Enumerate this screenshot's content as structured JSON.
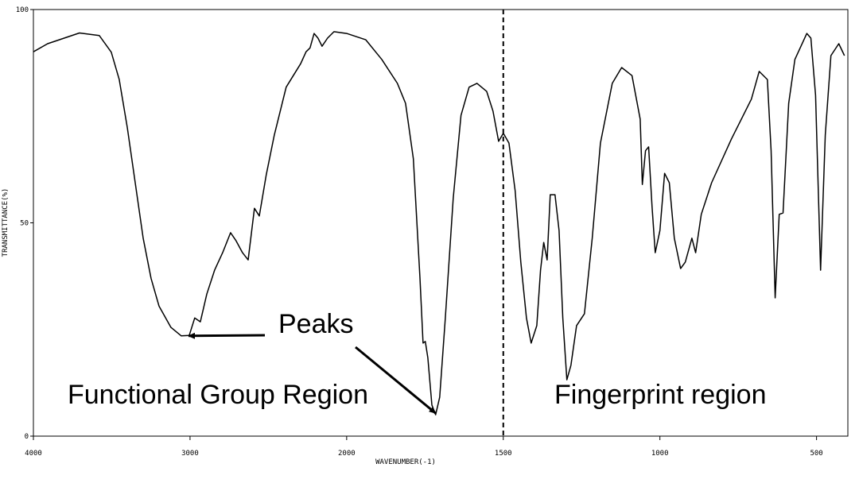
{
  "chart_data": {
    "type": "line",
    "xlabel": "WAVENUMBER(-1)",
    "ylabel": "TRANSMITTANCE(%)",
    "xlim": [
      4000,
      400
    ],
    "x_scale_break": 2000,
    "ylim": [
      0,
      100
    ],
    "xticks": [
      4000,
      3000,
      2000,
      1500,
      1000,
      500
    ],
    "yticks": [
      0,
      50,
      100
    ],
    "vlines": [
      1500
    ],
    "annotations": [
      {
        "text": "Peaks",
        "arrows": [
          [
            3030,
            23.5
          ],
          [
            1716,
            5
          ]
        ]
      },
      {
        "text": "Functional Group Region"
      },
      {
        "text": "Fingerprint region"
      }
    ],
    "series": [
      {
        "color": "#000000",
        "x": [
          4000,
          3909,
          3706,
          3579,
          3503,
          3452,
          3401,
          3350,
          3299,
          3249,
          3198,
          3122,
          3056,
          3005,
          2970,
          2934,
          2893,
          2843,
          2792,
          2741,
          2706,
          2665,
          2629,
          2609,
          2589,
          2558,
          2513,
          2462,
          2386,
          2294,
          2259,
          2234,
          2208,
          2183,
          2157,
          2122,
          2081,
          2000,
          1939,
          1888,
          1838,
          1812,
          1787,
          1766,
          1756,
          1749,
          1741,
          1728,
          1716,
          1703,
          1685,
          1660,
          1635,
          1609,
          1584,
          1553,
          1533,
          1515,
          1500,
          1482,
          1462,
          1444,
          1426,
          1411,
          1393,
          1381,
          1371,
          1360,
          1350,
          1335,
          1322,
          1310,
          1297,
          1284,
          1266,
          1241,
          1216,
          1190,
          1152,
          1122,
          1089,
          1063,
          1056,
          1046,
          1036,
          1025,
          1015,
          1000,
          985,
          970,
          954,
          934,
          919,
          898,
          886,
          868,
          835,
          772,
          708,
          683,
          657,
          645,
          632,
          619,
          607,
          589,
          569,
          531,
          518,
          503,
          487,
          472,
          454,
          429,
          411
        ],
        "values": [
          90.1,
          92,
          94.5,
          93.9,
          90,
          83.6,
          72.4,
          59.4,
          46.4,
          37,
          30.5,
          25.5,
          23.5,
          23.6,
          27.7,
          26.8,
          33.3,
          38.9,
          43,
          47.7,
          45.8,
          43,
          41.3,
          47.3,
          53.4,
          51.6,
          61.3,
          70.6,
          81.8,
          87.3,
          90.1,
          91,
          94.4,
          93.3,
          91.4,
          93.3,
          94.8,
          94.4,
          92.9,
          88.3,
          82.7,
          78,
          65,
          37.1,
          21.8,
          22.2,
          18.4,
          7.3,
          5,
          9.1,
          27.7,
          55.7,
          75.2,
          81.8,
          82.7,
          80.8,
          76.2,
          69.1,
          71,
          68.7,
          57.5,
          40.8,
          27.7,
          21.8,
          25.9,
          38.9,
          45.4,
          41.3,
          56.6,
          56.6,
          48.2,
          27.7,
          13.2,
          16.6,
          25.9,
          28.7,
          46.4,
          68.7,
          82.7,
          86.4,
          84.5,
          74.3,
          59,
          66.9,
          67.8,
          53.8,
          43,
          48.2,
          61.6,
          59.4,
          46.4,
          39.3,
          40.8,
          46.4,
          43,
          52,
          59.4,
          69.6,
          79,
          85.5,
          83.6,
          66.9,
          32.4,
          52,
          52.3,
          78,
          88.3,
          94.4,
          93.3,
          79.9,
          38.9,
          70.6,
          89.2,
          92,
          89.2
        ]
      }
    ]
  }
}
